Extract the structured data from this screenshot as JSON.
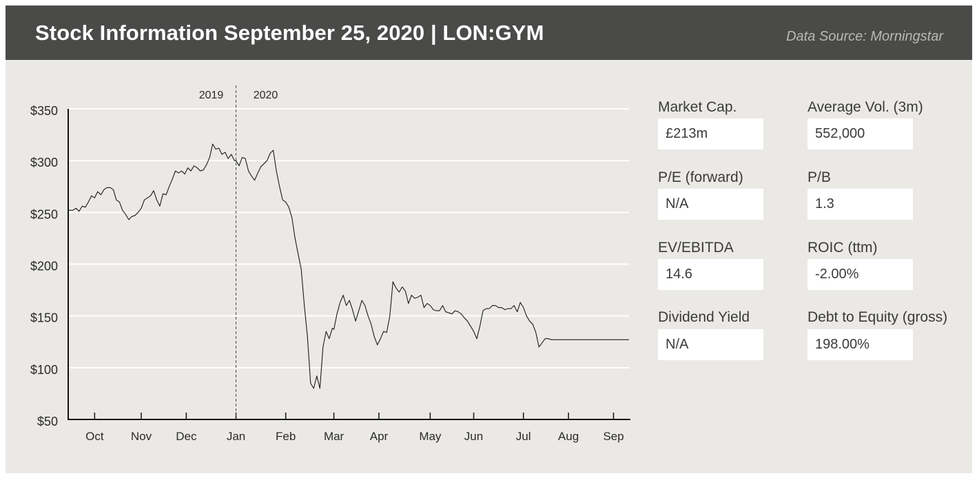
{
  "header": {
    "title": "Stock Information September 25, 2020 | LON:GYM",
    "source": "Data Source: Morningstar"
  },
  "metrics": [
    {
      "label": "Market Cap.",
      "value": "£213m"
    },
    {
      "label": "Average Vol. (3m)",
      "value": "552,000"
    },
    {
      "label": "P/E (forward)",
      "value": "N/A"
    },
    {
      "label": "P/B",
      "value": "1.3"
    },
    {
      "label": "EV/EBITDA",
      "value": "14.6"
    },
    {
      "label": "ROIC (ttm)",
      "value": "-2.00%"
    },
    {
      "label": "Dividend Yield",
      "value": "N/A"
    },
    {
      "label": "Debt to Equity (gross)",
      "value": "198.00%"
    }
  ],
  "chart_data": {
    "type": "line",
    "title": "",
    "xlabel": "",
    "ylabel": "",
    "ylim": [
      50,
      350
    ],
    "y_ticks": [
      {
        "value": 350,
        "label": "$350"
      },
      {
        "value": 300,
        "label": "$300"
      },
      {
        "value": 250,
        "label": "$250"
      },
      {
        "value": 200,
        "label": "$200"
      },
      {
        "value": 150,
        "label": "$150"
      },
      {
        "value": 100,
        "label": "$100"
      },
      {
        "value": 50,
        "label": "$50"
      }
    ],
    "x_range": [
      0,
      361
    ],
    "x_ticks": [
      {
        "day": 17,
        "label": "Oct"
      },
      {
        "day": 47,
        "label": "Nov"
      },
      {
        "day": 76,
        "label": "Dec"
      },
      {
        "day": 108,
        "label": "Jan"
      },
      {
        "day": 140,
        "label": "Feb"
      },
      {
        "day": 171,
        "label": "Mar"
      },
      {
        "day": 200,
        "label": "Apr"
      },
      {
        "day": 233,
        "label": "May"
      },
      {
        "day": 261,
        "label": "Jun"
      },
      {
        "day": 293,
        "label": "Jul"
      },
      {
        "day": 322,
        "label": "Aug"
      },
      {
        "day": 351,
        "label": "Sep"
      }
    ],
    "year_divider": {
      "day": 108,
      "left_label": "2019",
      "right_label": "2020"
    },
    "series": [
      {
        "name": "LON:GYM",
        "x": [
          0,
          3,
          5,
          7,
          9,
          11,
          13,
          15,
          17,
          19,
          21,
          23,
          25,
          27,
          29,
          31,
          33,
          35,
          37,
          39,
          41,
          43,
          45,
          47,
          49,
          51,
          53,
          55,
          57,
          59,
          61,
          63,
          65,
          67,
          69,
          71,
          73,
          75,
          77,
          79,
          81,
          83,
          85,
          87,
          89,
          91,
          93,
          95,
          97,
          99,
          101,
          103,
          105,
          107,
          108,
          110,
          112,
          114,
          116,
          118,
          120,
          122,
          124,
          126,
          128,
          130,
          132,
          134,
          136,
          138,
          140,
          142,
          144,
          146,
          148,
          150,
          152,
          154,
          156,
          158,
          160,
          162,
          164,
          166,
          168,
          170,
          171,
          173,
          175,
          177,
          179,
          181,
          183,
          185,
          187,
          189,
          191,
          193,
          195,
          197,
          199,
          201,
          203,
          205,
          207,
          209,
          211,
          213,
          215,
          217,
          219,
          221,
          223,
          225,
          227,
          229,
          231,
          233,
          235,
          237,
          239,
          241,
          243,
          245,
          247,
          249,
          251,
          253,
          255,
          257,
          259,
          261,
          263,
          265,
          267,
          269,
          271,
          273,
          275,
          277,
          279,
          281,
          283,
          285,
          287,
          289,
          291,
          293,
          295,
          297,
          299,
          301,
          303,
          305,
          307,
          309,
          311,
          313,
          315,
          317,
          319,
          321,
          323,
          325,
          327,
          329,
          331,
          333,
          335,
          337,
          339,
          341,
          343,
          345,
          347,
          349,
          351,
          353,
          355,
          357,
          359,
          361
        ],
        "values": [
          252,
          252,
          254,
          251,
          256,
          255,
          260,
          266,
          264,
          270,
          267,
          272,
          274,
          274,
          272,
          262,
          260,
          252,
          248,
          243,
          246,
          247,
          250,
          254,
          262,
          264,
          266,
          271,
          262,
          256,
          268,
          267,
          275,
          282,
          290,
          288,
          290,
          287,
          293,
          290,
          295,
          293,
          290,
          291,
          296,
          303,
          316,
          311,
          312,
          306,
          308,
          302,
          306,
          300,
          300,
          295,
          303,
          302,
          290,
          285,
          281,
          288,
          294,
          297,
          300,
          307,
          310,
          290,
          275,
          262,
          260,
          255,
          245,
          225,
          210,
          195,
          160,
          130,
          85,
          80,
          92,
          80,
          120,
          135,
          128,
          138,
          137,
          152,
          163,
          170,
          160,
          165,
          156,
          145,
          155,
          165,
          160,
          150,
          142,
          130,
          122,
          128,
          135,
          134,
          150,
          183,
          177,
          173,
          178,
          174,
          162,
          170,
          167,
          168,
          170,
          158,
          162,
          160,
          156,
          155,
          155,
          160,
          154,
          153,
          152,
          155,
          154,
          152,
          148,
          145,
          140,
          135,
          128,
          140,
          155,
          157,
          157,
          160,
          160,
          158,
          158,
          156,
          157,
          157,
          160,
          154,
          163,
          158,
          150,
          145,
          142,
          134,
          120,
          124,
          128,
          128,
          127,
          127,
          127,
          127,
          127,
          127,
          127,
          127,
          127,
          127,
          127,
          127,
          127,
          127,
          127,
          127,
          127,
          127,
          127,
          127,
          127,
          127,
          127,
          127,
          127,
          127
        ]
      }
    ]
  }
}
